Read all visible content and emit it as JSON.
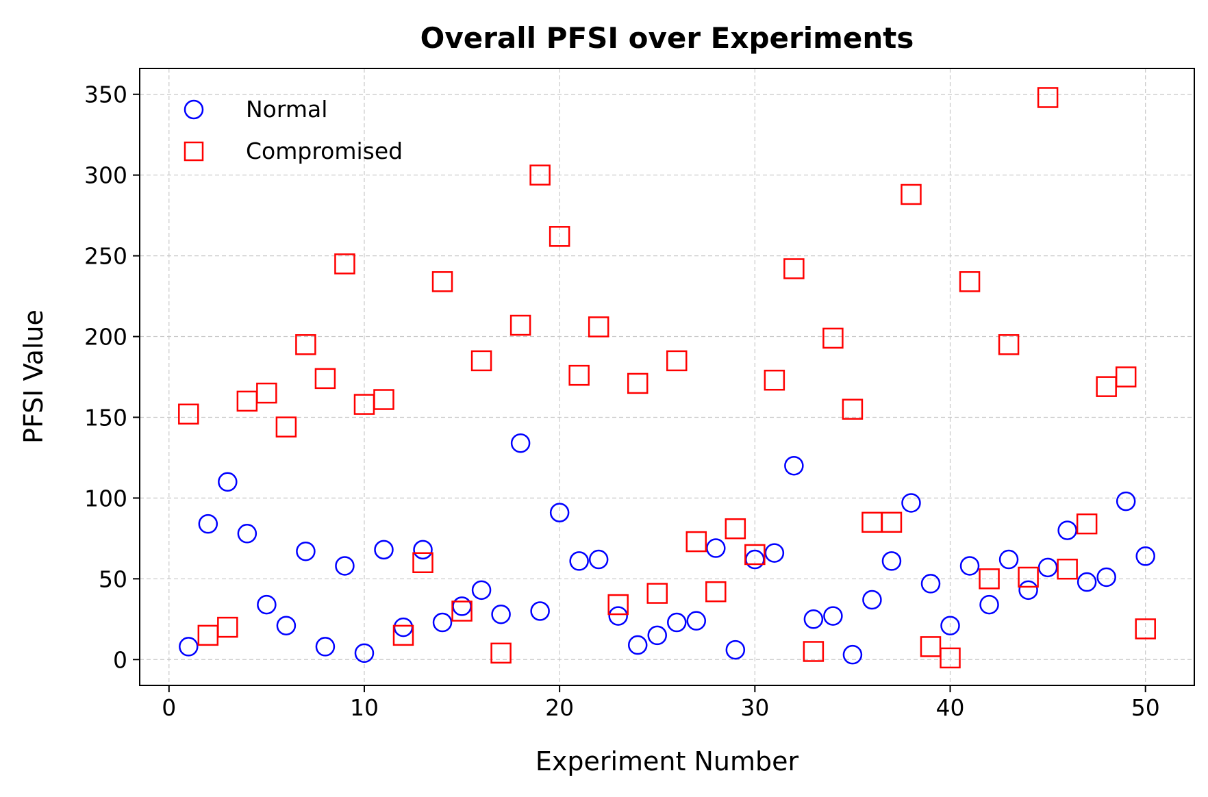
{
  "chart_data": {
    "type": "scatter",
    "title": "Overall PFSI over Experiments",
    "xlabel": "Experiment Number",
    "ylabel": "PFSI Value",
    "xlim": [
      -1.5,
      52.5
    ],
    "ylim": [
      -16,
      366
    ],
    "xticks": [
      0,
      10,
      20,
      30,
      40,
      50
    ],
    "yticks": [
      0,
      50,
      100,
      150,
      200,
      250,
      300,
      350
    ],
    "grid": true,
    "legend_position": "top-left",
    "x": [
      1,
      2,
      3,
      4,
      5,
      6,
      7,
      8,
      9,
      10,
      11,
      12,
      13,
      14,
      15,
      16,
      17,
      18,
      19,
      20,
      21,
      22,
      23,
      24,
      25,
      26,
      27,
      28,
      29,
      30,
      31,
      32,
      33,
      34,
      35,
      36,
      37,
      38,
      39,
      40,
      41,
      42,
      43,
      44,
      45,
      46,
      47,
      48,
      49,
      50
    ],
    "series": [
      {
        "name": "Normal",
        "marker": "circle",
        "color": "#0000ff",
        "values": [
          8,
          84,
          110,
          78,
          34,
          21,
          67,
          8,
          58,
          4,
          68,
          20,
          68,
          23,
          33,
          43,
          28,
          134,
          30,
          91,
          61,
          62,
          27,
          9,
          15,
          23,
          24,
          69,
          6,
          62,
          66,
          120,
          25,
          27,
          3,
          37,
          61,
          97,
          47,
          21,
          58,
          34,
          62,
          43,
          57,
          80,
          48,
          51,
          98,
          64
        ]
      },
      {
        "name": "Compromised",
        "marker": "square",
        "color": "#ff0000",
        "values": [
          152,
          15,
          20,
          160,
          165,
          144,
          195,
          174,
          245,
          158,
          161,
          15,
          60,
          234,
          30,
          185,
          4,
          207,
          300,
          262,
          176,
          206,
          34,
          171,
          41,
          185,
          73,
          42,
          81,
          65,
          173,
          242,
          5,
          199,
          155,
          85,
          85,
          288,
          8,
          1,
          234,
          50,
          195,
          51,
          348,
          56,
          84,
          169,
          175,
          19
        ]
      }
    ]
  }
}
